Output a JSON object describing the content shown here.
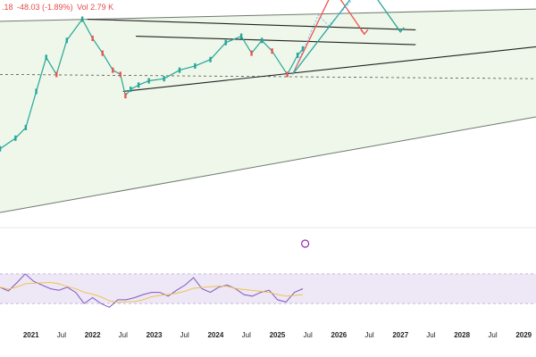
{
  "header": {
    "price_fragment": ".18",
    "change": "-48.03 (-1.89%)",
    "vol": "Vol 2.79 K"
  },
  "colors": {
    "price_up": "#26a69a",
    "price_down": "#ef5350",
    "channel_fill": "#eef7e9",
    "channel_line": "#6e7a6e",
    "rsi_line": "#7e57c2",
    "rsi_ma": "#f0c040",
    "rsi_band": "#ede7f6",
    "projection_red": "#ef5350",
    "projection_teal": "#26a69a",
    "projection_blue": "#64b5f6",
    "support_line": "#222222"
  },
  "chart_data": [
    {
      "type": "line",
      "panel": "price",
      "x_axis": "time",
      "xlim": [
        "2020-07-01",
        "2029-03-15"
      ],
      "price_points": [
        [
          "2020-07-01",
          0.35
        ],
        [
          "2020-10-01",
          0.4
        ],
        [
          "2020-12-01",
          0.45
        ],
        [
          "2021-02-01",
          0.62
        ],
        [
          "2021-04-01",
          0.78
        ],
        [
          "2021-06-01",
          0.7
        ],
        [
          "2021-08-01",
          0.86
        ],
        [
          "2021-11-01",
          0.96
        ],
        [
          "2022-01-01",
          0.87
        ],
        [
          "2022-03-01",
          0.8
        ],
        [
          "2022-05-01",
          0.72
        ],
        [
          "2022-06-15",
          0.7
        ],
        [
          "2022-07-15",
          0.6
        ],
        [
          "2022-08-15",
          0.63
        ],
        [
          "2022-10-01",
          0.65
        ],
        [
          "2022-12-01",
          0.67
        ],
        [
          "2023-03-01",
          0.68
        ],
        [
          "2023-06-01",
          0.72
        ],
        [
          "2023-09-01",
          0.74
        ],
        [
          "2023-12-01",
          0.77
        ],
        [
          "2024-03-01",
          0.85
        ],
        [
          "2024-06-01",
          0.88
        ],
        [
          "2024-08-01",
          0.8
        ],
        [
          "2024-10-01",
          0.86
        ],
        [
          "2024-12-01",
          0.81
        ],
        [
          "2025-03-01",
          0.7
        ],
        [
          "2025-05-01",
          0.79
        ],
        [
          "2025-06-01",
          0.82
        ]
      ],
      "channel": {
        "upper": [
          [
            "2020-07-01",
            0.95
          ],
          [
            "2028-01-01",
            1.0
          ]
        ],
        "lower": [
          [
            "2020-07-01",
            0.05
          ],
          [
            "2029-03-15",
            0.5
          ]
        ],
        "middle_dashed": [
          [
            "2020-07-01",
            0.7
          ],
          [
            "2029-03-15",
            0.68
          ]
        ]
      },
      "trend_lines": [
        {
          "name": "resistance",
          "points": [
            [
              "2021-12-01",
              0.96
            ],
            [
              "2027-04-01",
              0.91
            ]
          ]
        },
        {
          "name": "support",
          "points": [
            [
              "2022-07-01",
              0.62
            ],
            [
              "2029-03-15",
              0.83
            ]
          ]
        },
        {
          "name": "upper_wedge",
          "points": [
            [
              "2022-09-15",
              0.88
            ],
            [
              "2027-04-01",
              0.84
            ]
          ]
        }
      ],
      "projections": [
        {
          "color": "red",
          "points": [
            [
              "2025-04-01",
              0.7
            ],
            [
              "2025-12-01",
              1.1
            ],
            [
              "2026-06-01",
              0.89
            ]
          ]
        },
        {
          "color": "teal",
          "points": [
            [
              "2025-04-01",
              0.7
            ],
            [
              "2026-06-01",
              1.14
            ],
            [
              "2027-01-01",
              0.9
            ]
          ]
        }
      ],
      "annotations": [
        {
          "type": "circle-marker",
          "x": "2025-06-15"
        }
      ]
    },
    {
      "type": "line",
      "panel": "rsi",
      "series": [
        {
          "name": "",
          "values": [
            52,
            47,
            58,
            70,
            60,
            55,
            50,
            48,
            52,
            45,
            30,
            38,
            30,
            25,
            35,
            35,
            38,
            42,
            45,
            45,
            40,
            48,
            55,
            65,
            50,
            45,
            52,
            55,
            50,
            42,
            40,
            45,
            48,
            35,
            32,
            45,
            50
          ]
        }
      ],
      "band": [
        30,
        70
      ],
      "ylim": [
        0,
        100
      ]
    }
  ],
  "x_ticks": [
    {
      "label": "2021",
      "date": "2021-01-01",
      "bold": true
    },
    {
      "label": "Jul",
      "date": "2021-07-01",
      "bold": false
    },
    {
      "label": "2022",
      "date": "2022-01-01",
      "bold": true
    },
    {
      "label": "Jul",
      "date": "2022-07-01",
      "bold": false
    },
    {
      "label": "2023",
      "date": "2023-01-01",
      "bold": true
    },
    {
      "label": "Jul",
      "date": "2023-07-01",
      "bold": false
    },
    {
      "label": "2024",
      "date": "2024-01-01",
      "bold": true
    },
    {
      "label": "Jul",
      "date": "2024-07-01",
      "bold": false
    },
    {
      "label": "2025",
      "date": "2025-01-01",
      "bold": true
    },
    {
      "label": "Jul",
      "date": "2025-07-01",
      "bold": false
    },
    {
      "label": "2026",
      "date": "2026-01-01",
      "bold": true
    },
    {
      "label": "Jul",
      "date": "2026-07-01",
      "bold": false
    },
    {
      "label": "2027",
      "date": "2027-01-01",
      "bold": true
    },
    {
      "label": "Jul",
      "date": "2027-07-01",
      "bold": false
    },
    {
      "label": "2028",
      "date": "2028-01-01",
      "bold": true
    },
    {
      "label": "Jul",
      "date": "2028-07-01",
      "bold": false
    },
    {
      "label": "2029",
      "date": "2029-01-01",
      "bold": true
    }
  ]
}
